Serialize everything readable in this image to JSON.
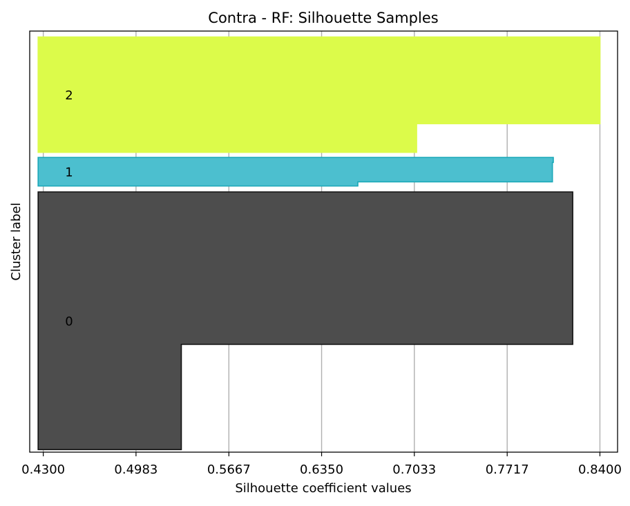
{
  "chart_data": {
    "type": "silhouette",
    "title": "Contra - RF: Silhouette Samples",
    "xlabel": "Silhouette coefficient values",
    "ylabel": "Cluster label",
    "xlim": [
      0.42,
      0.853
    ],
    "ylim": [
      0,
      100
    ],
    "x_ticks": [
      "0.4300",
      "0.4983",
      "0.5667",
      "0.6350",
      "0.7033",
      "0.7717",
      "0.8400"
    ],
    "grid": "vertical",
    "clusters": [
      {
        "label": "0",
        "color": "#4d4d4d",
        "edge_color": "#111111",
        "y_range": [
          0.6,
          61.8
        ],
        "profile": [
          {
            "y_from": 0.6,
            "y_to": 25.6,
            "value": 0.5317
          },
          {
            "y_from": 25.6,
            "y_to": 61.8,
            "value": 0.82
          }
        ]
      },
      {
        "label": "1",
        "color": "#4cbfcf",
        "edge_color": "#1aa8b8",
        "y_range": [
          63.2,
          70.0
        ],
        "profile": [
          {
            "y_from": 63.2,
            "y_to": 64.2,
            "value": 0.6617
          },
          {
            "y_from": 64.2,
            "y_to": 68.8,
            "value": 0.805
          },
          {
            "y_from": 68.8,
            "y_to": 70.0,
            "value": 0.8057
          }
        ]
      },
      {
        "label": "2",
        "color": "#dcfb4a",
        "edge_color": "#dcfb4a",
        "y_range": [
          71.2,
          98.6
        ],
        "profile": [
          {
            "y_from": 71.2,
            "y_to": 78.0,
            "value": 0.705
          },
          {
            "y_from": 78.0,
            "y_to": 98.6,
            "value": 0.84
          }
        ]
      }
    ]
  }
}
